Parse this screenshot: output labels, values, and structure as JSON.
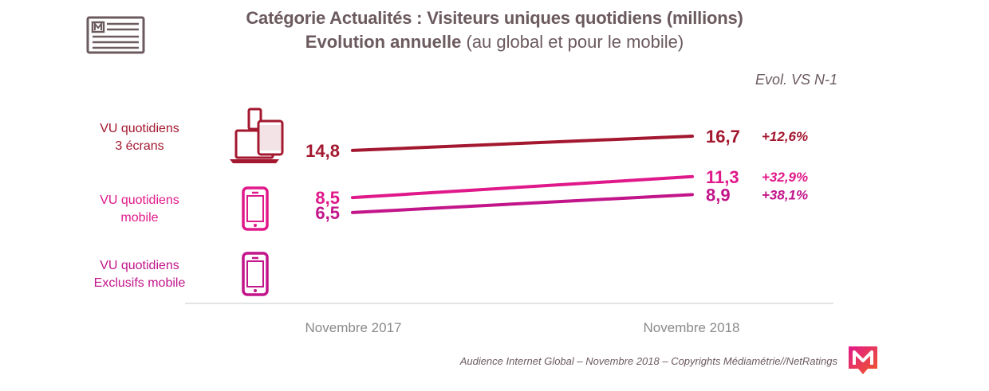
{
  "title": {
    "line1": "Catégorie Actualités : Visiteurs uniques quotidiens (millions)",
    "line2_bold": "Evolution annuelle",
    "line2_rest": " (au global et pour le mobile)"
  },
  "evol_header": "Evol. VS N-1",
  "colors": {
    "three_screens": "#a3172f",
    "mobile": "#e0198a",
    "exclusive_mobile": "#c2158a",
    "text_gray": "#6b5a5e"
  },
  "rows": [
    {
      "label_line1": "VU quotidiens",
      "label_line2": "3 écrans",
      "icon": "multi-device-icon"
    },
    {
      "label_line1": "VU quotidiens",
      "label_line2": "mobile",
      "icon": "smartphone-icon"
    },
    {
      "label_line1": "VU quotidiens",
      "label_line2": "Exclusifs mobile",
      "icon": "smartphone-icon"
    }
  ],
  "chart_data": {
    "type": "line",
    "x": [
      "Novembre 2017",
      "Novembre 2018"
    ],
    "series": [
      {
        "name": "VU quotidiens 3 écrans",
        "values": [
          14.8,
          16.7
        ],
        "labels": [
          "14,8",
          "16,7"
        ],
        "evolution": "+12,6%"
      },
      {
        "name": "VU quotidiens mobile",
        "values": [
          8.5,
          11.3
        ],
        "labels": [
          "8,5",
          "11,3"
        ],
        "evolution": "+32,9%"
      },
      {
        "name": "VU quotidiens Exclusifs mobile",
        "values": [
          6.5,
          8.9
        ],
        "labels": [
          "6,5",
          "8,9"
        ],
        "evolution": "+38,1%"
      }
    ]
  },
  "footer": "Audience Internet Global – Novembre 2018 – Copyrights Médiamétrie//NetRatings",
  "logo_letter": "M"
}
